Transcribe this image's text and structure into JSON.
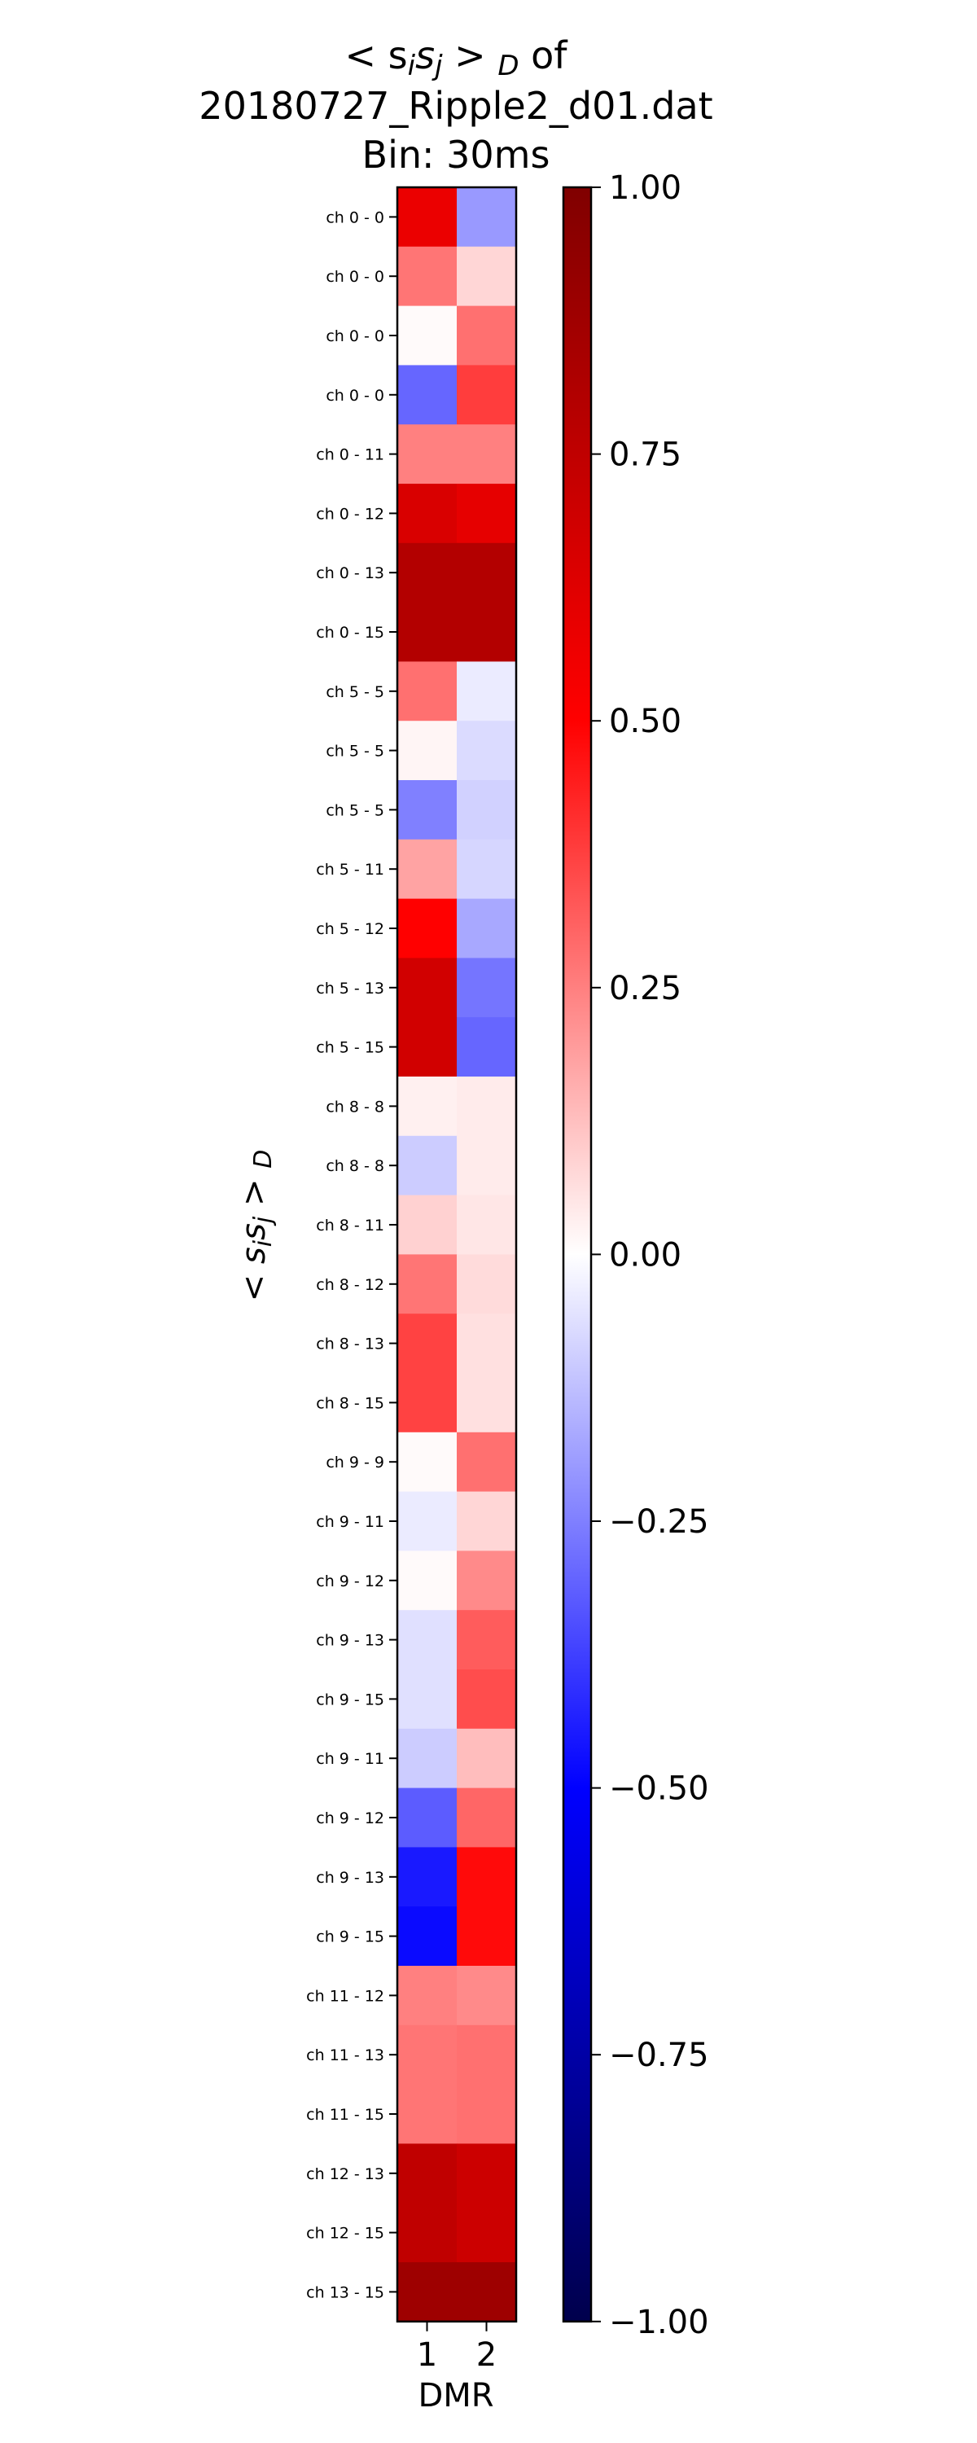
{
  "chart_data": {
    "type": "heatmap",
    "title_lines": [
      "< s",
      "20180727_Ripple2_d01.dat",
      "Bin: 30ms"
    ],
    "title_math": {
      "i": "i",
      "j": "j",
      "sub": "D",
      "suffix": " of"
    },
    "ylabel_math": {
      "prefix": "< s",
      "i": "i",
      "s2": "s",
      "j": "j",
      "gt": " > ",
      "sub": "D"
    },
    "xlabel": "DMR",
    "x_categories": [
      "1",
      "2"
    ],
    "y_categories": [
      "ch   0 -   0",
      "ch   0 -   0",
      "ch   0 -   0",
      "ch   0 -   0",
      "ch   0 - 11",
      "ch   0 - 12",
      "ch   0 - 13",
      "ch   0 - 15",
      "ch   5 -   5",
      "ch   5 -   5",
      "ch   5 -   5",
      "ch   5 - 11",
      "ch   5 - 12",
      "ch   5 - 13",
      "ch   5 - 15",
      "ch   8 -   8",
      "ch   8 -   8",
      "ch   8 - 11",
      "ch   8 - 12",
      "ch   8 - 13",
      "ch   8 - 15",
      "ch   9 -   9",
      "ch   9 - 11",
      "ch   9 - 12",
      "ch   9 - 13",
      "ch   9 - 15",
      "ch   9 - 11",
      "ch   9 - 12",
      "ch   9 - 13",
      "ch   9 - 15",
      "ch 11 - 12",
      "ch 11 - 13",
      "ch 11 - 15",
      "ch 12 - 13",
      "ch 12 - 15",
      "ch 13 - 15"
    ],
    "values": [
      [
        0.58,
        -0.2
      ],
      [
        0.27,
        0.08
      ],
      [
        0.01,
        0.28
      ],
      [
        -0.3,
        0.38
      ],
      [
        0.25,
        0.25
      ],
      [
        0.65,
        0.6
      ],
      [
        0.8,
        0.8
      ],
      [
        0.8,
        0.8
      ],
      [
        0.28,
        -0.04
      ],
      [
        0.02,
        -0.07
      ],
      [
        -0.25,
        -0.09
      ],
      [
        0.18,
        -0.08
      ],
      [
        0.5,
        -0.17
      ],
      [
        0.68,
        -0.27
      ],
      [
        0.68,
        -0.3
      ],
      [
        0.03,
        0.04
      ],
      [
        -0.1,
        0.04
      ],
      [
        0.09,
        0.05
      ],
      [
        0.27,
        0.07
      ],
      [
        0.37,
        0.06
      ],
      [
        0.37,
        0.06
      ],
      [
        0.01,
        0.28
      ],
      [
        -0.04,
        0.08
      ],
      [
        0.01,
        0.23
      ],
      [
        -0.06,
        0.32
      ],
      [
        -0.06,
        0.35
      ],
      [
        -0.1,
        0.13
      ],
      [
        -0.32,
        0.3
      ],
      [
        -0.45,
        0.48
      ],
      [
        -0.48,
        0.48
      ],
      [
        0.25,
        0.23
      ],
      [
        0.27,
        0.28
      ],
      [
        0.27,
        0.28
      ],
      [
        0.75,
        0.7
      ],
      [
        0.75,
        0.7
      ],
      [
        0.88,
        0.88
      ]
    ],
    "colorbar": {
      "min": -1.0,
      "max": 1.0,
      "ticks": [
        1.0,
        0.75,
        0.5,
        0.25,
        0.0,
        -0.25,
        -0.5,
        -0.75,
        -1.0
      ],
      "tick_labels": [
        "1.00",
        "0.75",
        "0.50",
        "0.25",
        "0.00",
        "−0.25",
        "−0.50",
        "−0.75",
        "−1.00"
      ],
      "colormap": "seismic",
      "colors": {
        "low": "#00004c",
        "mid_low": "#0000ff",
        "mid": "#ffffff",
        "mid_high": "#ff0000",
        "high": "#800000"
      }
    },
    "grid": false,
    "legend": "none"
  }
}
